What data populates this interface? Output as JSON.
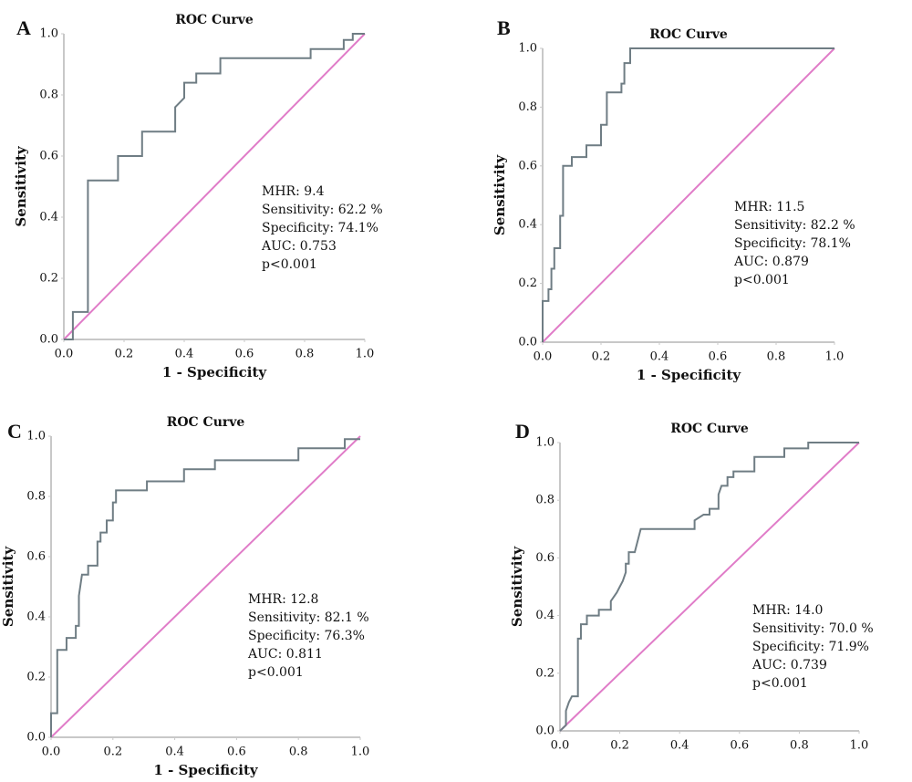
{
  "chart_data": [
    {
      "type": "line",
      "label": "A",
      "title": "ROC Curve",
      "xlabel": "1 - Specificity",
      "ylabel": "Sensitivity",
      "annotations": [
        "MHR: 9.4",
        "Sensitivity: 62.2 %",
        "Specificity: 74.1%",
        "AUC: 0.753",
        "p<0.001"
      ],
      "xlim": [
        0,
        1
      ],
      "ylim": [
        0,
        1
      ],
      "xticks": [
        {
          "value": 0,
          "label": "0.0"
        },
        {
          "value": 0.2,
          "label": "0.2"
        },
        {
          "value": 0.4,
          "label": "0.4"
        },
        {
          "value": 0.6,
          "label": "0.6"
        },
        {
          "value": 0.8,
          "label": "0.8"
        },
        {
          "value": 1,
          "label": "1.0"
        }
      ],
      "yticks": [
        {
          "value": 0,
          "label": "0.0"
        },
        {
          "value": 0.2,
          "label": "0.2"
        },
        {
          "value": 0.4,
          "label": "0.4"
        },
        {
          "value": 0.6,
          "label": "0.6"
        },
        {
          "value": 0.8,
          "label": "0.8"
        },
        {
          "value": 1,
          "label": "1.0"
        }
      ],
      "series": [
        {
          "color": "#6f7d84",
          "x": [
            0,
            0.03,
            0.03,
            0.08,
            0.08,
            0.18,
            0.18,
            0.26,
            0.26,
            0.37,
            0.37,
            0.4,
            0.4,
            0.44,
            0.44,
            0.52,
            0.52,
            0.82,
            0.82,
            0.93,
            0.93,
            0.96,
            0.96,
            1
          ],
          "values": [
            0,
            0,
            0.09,
            0.09,
            0.52,
            0.52,
            0.6,
            0.6,
            0.68,
            0.68,
            0.76,
            0.79,
            0.84,
            0.84,
            0.87,
            0.87,
            0.92,
            0.92,
            0.95,
            0.95,
            0.98,
            0.98,
            1,
            1
          ]
        },
        {
          "color": "#e07cc8",
          "x": [
            0,
            1
          ],
          "values": [
            0,
            1
          ]
        }
      ]
    },
    {
      "type": "line",
      "label": "B",
      "title": "ROC Curve",
      "xlabel": "1 - Specificity",
      "ylabel": "Sensitivity",
      "annotations": [
        "MHR: 11.5",
        "Sensitivity: 82.2 %",
        "Specificity: 78.1%",
        "AUC: 0.879",
        "p<0.001"
      ],
      "xlim": [
        0,
        1
      ],
      "ylim": [
        0,
        1
      ],
      "xticks": [
        {
          "value": 0,
          "label": "0.0"
        },
        {
          "value": 0.2,
          "label": "0.2"
        },
        {
          "value": 0.4,
          "label": "0.4"
        },
        {
          "value": 0.6,
          "label": "0.6"
        },
        {
          "value": 0.8,
          "label": "0.8"
        },
        {
          "value": 1,
          "label": "1.0"
        }
      ],
      "yticks": [
        {
          "value": 0,
          "label": "0.0"
        },
        {
          "value": 0.2,
          "label": "0.2"
        },
        {
          "value": 0.4,
          "label": "0.4"
        },
        {
          "value": 0.6,
          "label": "0.6"
        },
        {
          "value": 0.8,
          "label": "0.8"
        },
        {
          "value": 1,
          "label": "1.0"
        }
      ],
      "series": [
        {
          "color": "#6f7d84",
          "x": [
            0,
            0,
            0.02,
            0.02,
            0.03,
            0.03,
            0.04,
            0.04,
            0.06,
            0.06,
            0.07,
            0.07,
            0.1,
            0.1,
            0.15,
            0.15,
            0.2,
            0.2,
            0.22,
            0.22,
            0.27,
            0.27,
            0.28,
            0.28,
            0.3,
            0.3,
            1
          ],
          "values": [
            0,
            0.14,
            0.14,
            0.18,
            0.18,
            0.25,
            0.25,
            0.32,
            0.32,
            0.43,
            0.43,
            0.6,
            0.6,
            0.63,
            0.63,
            0.67,
            0.67,
            0.74,
            0.74,
            0.85,
            0.85,
            0.88,
            0.88,
            0.95,
            0.95,
            1,
            1
          ]
        },
        {
          "color": "#e07cc8",
          "x": [
            0,
            1
          ],
          "values": [
            0,
            1
          ]
        }
      ]
    },
    {
      "type": "line",
      "label": "C",
      "title": "ROC Curve",
      "xlabel": "1 - Specificity",
      "ylabel": "Sensitivity",
      "annotations": [
        "MHR: 12.8",
        "Sensitivity: 82.1 %",
        "Specificity: 76.3%",
        "AUC: 0.811",
        "p<0.001"
      ],
      "xlim": [
        0,
        1
      ],
      "ylim": [
        0,
        1
      ],
      "xticks": [
        {
          "value": 0,
          "label": "0.0"
        },
        {
          "value": 0.2,
          "label": "0.2"
        },
        {
          "value": 0.4,
          "label": "0.4"
        },
        {
          "value": 0.6,
          "label": "0.6"
        },
        {
          "value": 0.8,
          "label": "0.8"
        },
        {
          "value": 1,
          "label": "1.0"
        }
      ],
      "yticks": [
        {
          "value": 0,
          "label": "0.0"
        },
        {
          "value": 0.2,
          "label": "0.2"
        },
        {
          "value": 0.4,
          "label": "0.4"
        },
        {
          "value": 0.6,
          "label": "0.6"
        },
        {
          "value": 0.8,
          "label": "0.8"
        },
        {
          "value": 1,
          "label": "1.0"
        }
      ],
      "series": [
        {
          "color": "#6f7d84",
          "x": [
            0,
            0,
            0.02,
            0.02,
            0.05,
            0.05,
            0.08,
            0.08,
            0.09,
            0.09,
            0.1,
            0.12,
            0.12,
            0.15,
            0.15,
            0.16,
            0.16,
            0.18,
            0.18,
            0.2,
            0.2,
            0.21,
            0.21,
            0.31,
            0.31,
            0.43,
            0.43,
            0.53,
            0.53,
            0.8,
            0.8,
            0.95,
            0.95,
            1
          ],
          "values": [
            0,
            0.08,
            0.08,
            0.29,
            0.29,
            0.33,
            0.33,
            0.37,
            0.37,
            0.47,
            0.54,
            0.54,
            0.57,
            0.57,
            0.65,
            0.65,
            0.68,
            0.68,
            0.72,
            0.72,
            0.78,
            0.78,
            0.82,
            0.82,
            0.85,
            0.85,
            0.89,
            0.89,
            0.92,
            0.92,
            0.96,
            0.96,
            0.99,
            0.99
          ]
        },
        {
          "color": "#e07cc8",
          "x": [
            0,
            1
          ],
          "values": [
            0,
            1
          ]
        }
      ]
    },
    {
      "type": "line",
      "label": "D",
      "title": "ROC Curve",
      "ylabel": "Sensitivity",
      "annotations": [
        "MHR: 14.0",
        "Sensitivity: 70.0 %",
        "Specificity: 71.9%",
        "AUC: 0.739",
        "p<0.001"
      ],
      "xlim": [
        0,
        1
      ],
      "ylim": [
        0,
        1
      ],
      "xticks": [
        {
          "value": 0,
          "label": "0.0"
        },
        {
          "value": 0.2,
          "label": "0.2"
        },
        {
          "value": 0.4,
          "label": "0.4"
        },
        {
          "value": 0.6,
          "label": "0.6"
        },
        {
          "value": 0.8,
          "label": "0.8"
        },
        {
          "value": 1,
          "label": "1.0"
        }
      ],
      "yticks": [
        {
          "value": 0,
          "label": "0.0"
        },
        {
          "value": 0.2,
          "label": "0.2"
        },
        {
          "value": 0.4,
          "label": "0.4"
        },
        {
          "value": 0.6,
          "label": "0.6"
        },
        {
          "value": 0.8,
          "label": "0.8"
        },
        {
          "value": 1,
          "label": "1.0"
        }
      ],
      "series": [
        {
          "color": "#6f7d84",
          "x": [
            0,
            0.02,
            0.02,
            0.03,
            0.04,
            0.06,
            0.06,
            0.07,
            0.07,
            0.09,
            0.09,
            0.13,
            0.13,
            0.17,
            0.17,
            0.19,
            0.2,
            0.21,
            0.22,
            0.22,
            0.23,
            0.23,
            0.25,
            0.27,
            0.45,
            0.45,
            0.48,
            0.5,
            0.5,
            0.53,
            0.53,
            0.54,
            0.56,
            0.56,
            0.58,
            0.58,
            0.65,
            0.65,
            0.75,
            0.75,
            0.83,
            0.83,
            1
          ],
          "values": [
            0,
            0.02,
            0.07,
            0.1,
            0.12,
            0.12,
            0.32,
            0.32,
            0.37,
            0.37,
            0.4,
            0.4,
            0.42,
            0.42,
            0.45,
            0.48,
            0.5,
            0.52,
            0.55,
            0.58,
            0.58,
            0.62,
            0.62,
            0.7,
            0.7,
            0.73,
            0.75,
            0.75,
            0.77,
            0.77,
            0.82,
            0.85,
            0.85,
            0.88,
            0.88,
            0.9,
            0.9,
            0.95,
            0.95,
            0.98,
            0.98,
            1,
            1
          ]
        },
        {
          "color": "#e07cc8",
          "x": [
            0,
            1
          ],
          "values": [
            0,
            1
          ]
        }
      ]
    }
  ]
}
